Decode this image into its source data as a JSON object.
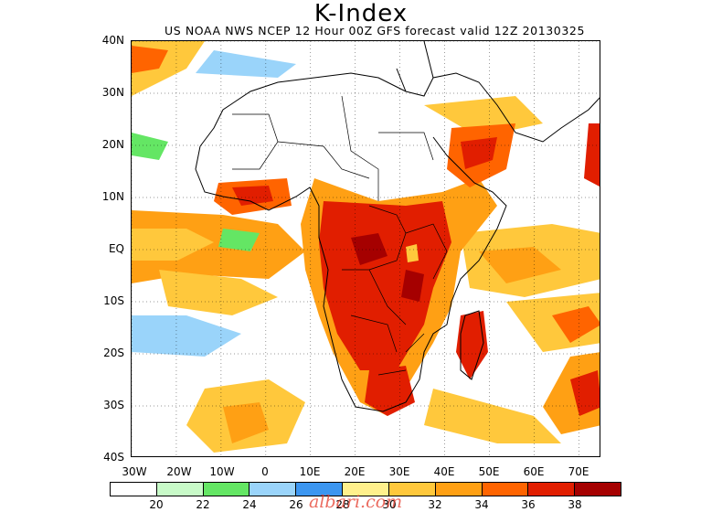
{
  "header": {
    "title": "K-Index",
    "subtitle": "US NOAA NWS NCEP 12 Hour 00Z GFS forecast valid 12Z 20130325"
  },
  "axes": {
    "y_labels": [
      "40N",
      "30N",
      "20N",
      "10N",
      "EQ",
      "10S",
      "20S",
      "30S",
      "40S"
    ],
    "x_labels": [
      "30W",
      "20W",
      "10W",
      "0",
      "10E",
      "20E",
      "30E",
      "40E",
      "50E",
      "60E",
      "70E"
    ],
    "lon_range": [
      -30,
      75
    ],
    "lat_range": [
      -40,
      40
    ]
  },
  "legend": {
    "labels": [
      "20",
      "22",
      "24",
      "26",
      "28",
      "30",
      "32",
      "34",
      "36",
      "38"
    ],
    "colors": [
      "#ffffff",
      "#c8fac8",
      "#64e664",
      "#9ad4fa",
      "#3c96f0",
      "#fff08c",
      "#ffc83c",
      "#ffa014",
      "#ff6400",
      "#e11e00",
      "#a50000"
    ]
  },
  "watermark": "albari.com"
}
